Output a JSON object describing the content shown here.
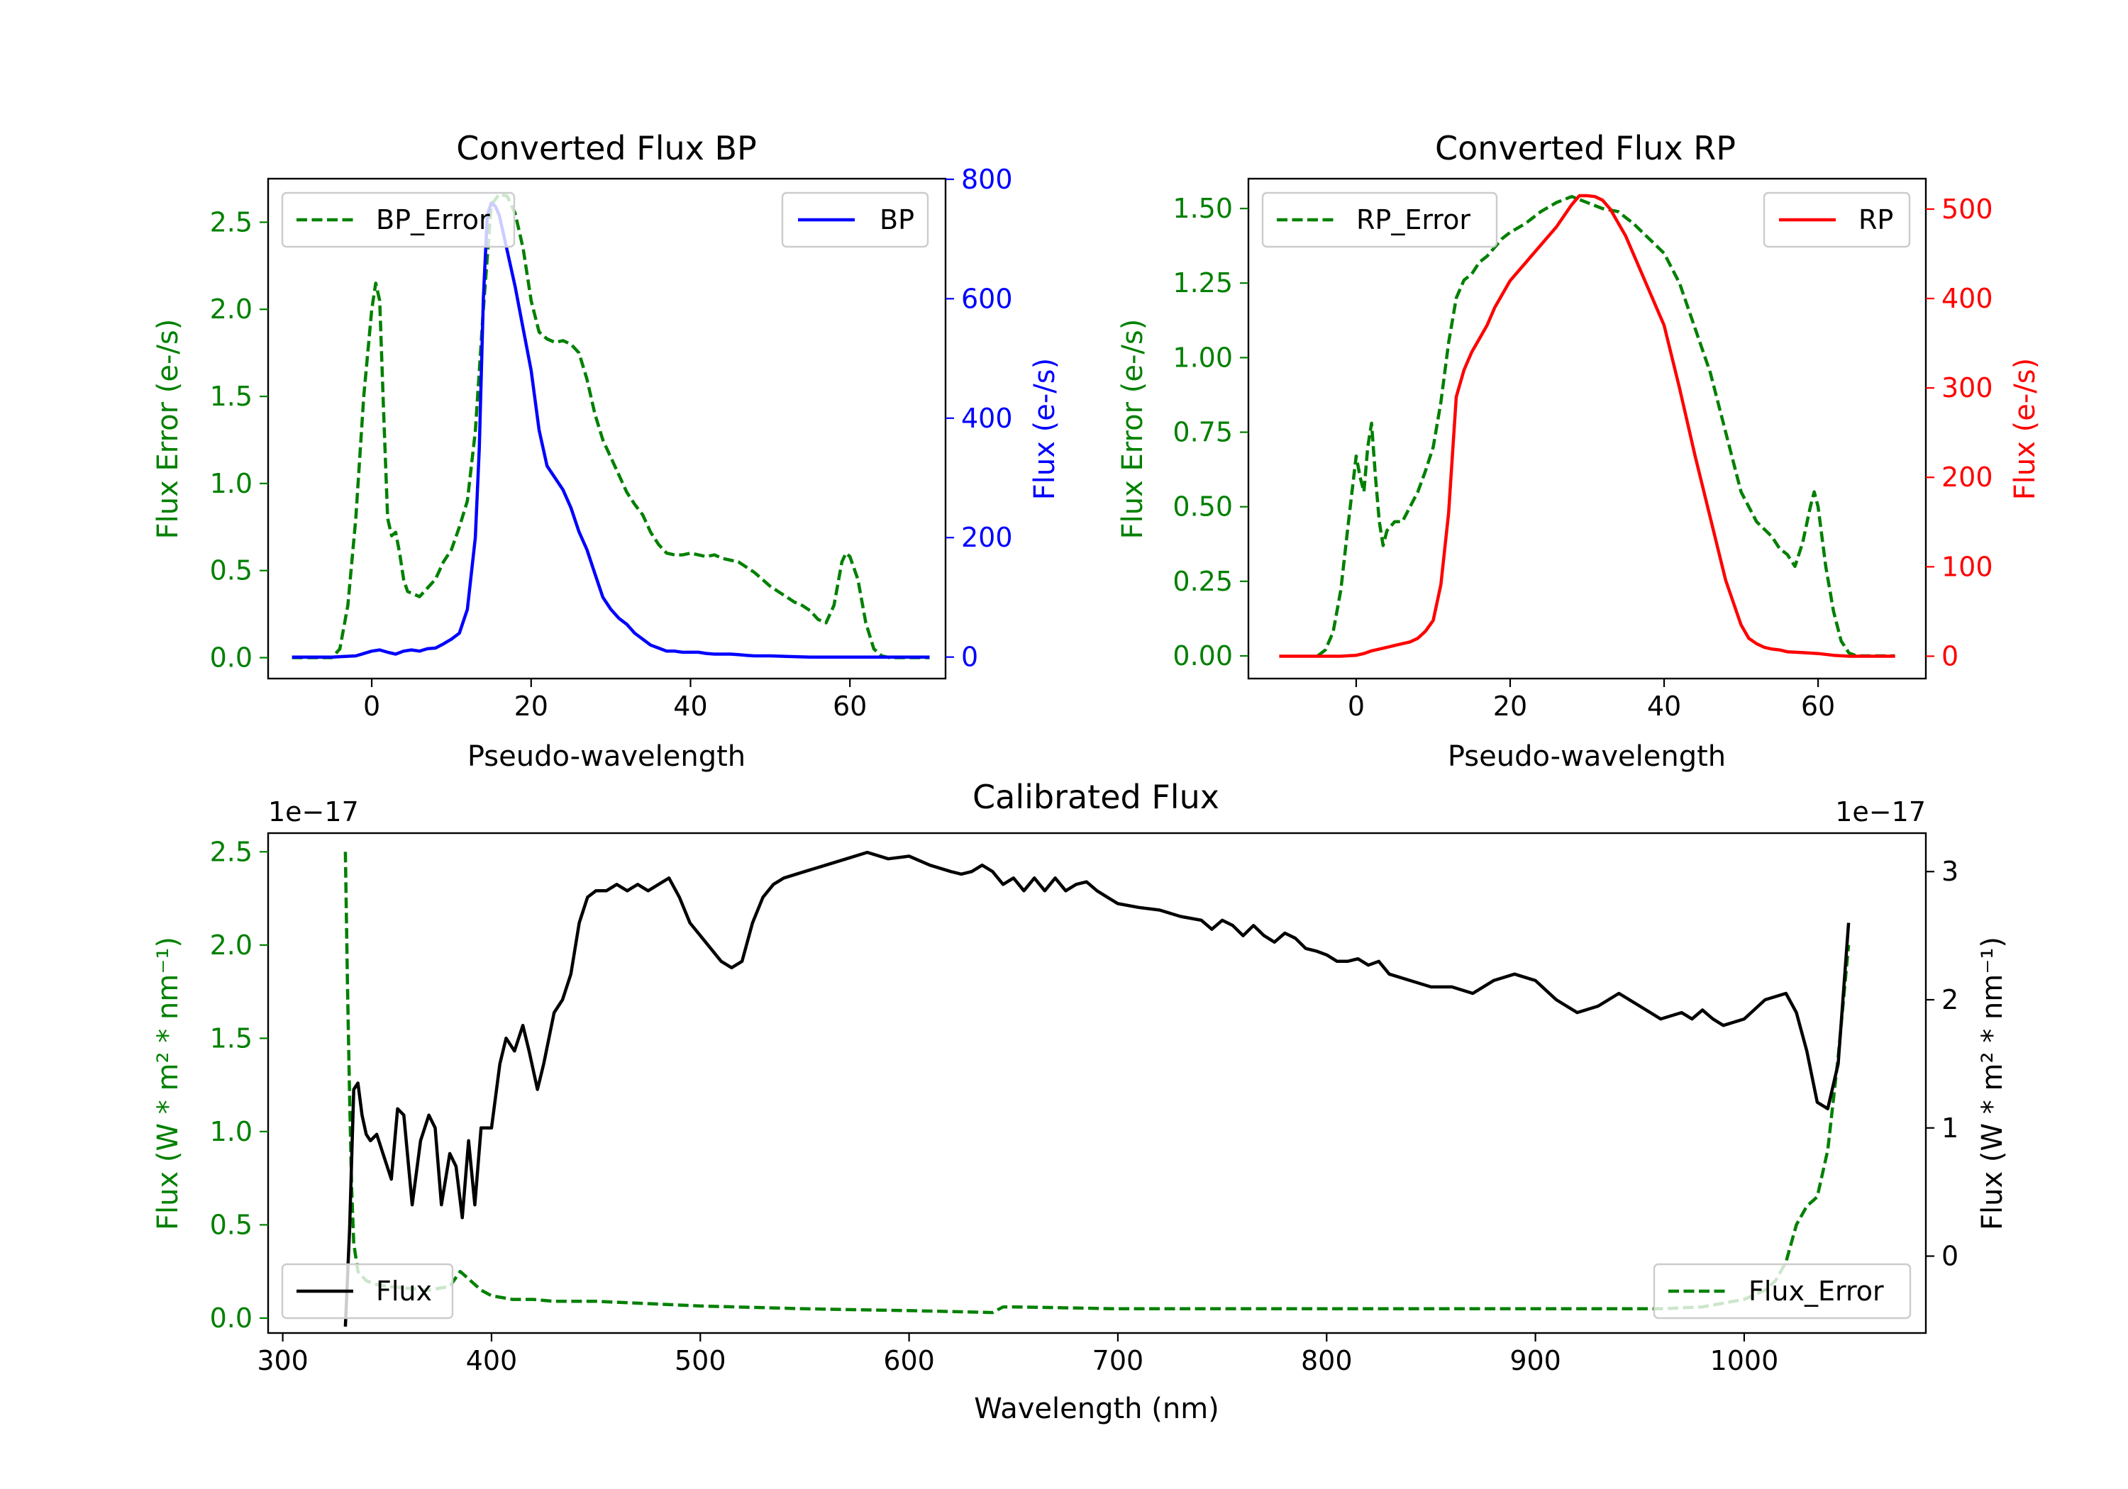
{
  "chart_data": [
    {
      "type": "line",
      "id": "bp",
      "title": "Converted Flux BP",
      "xlabel": "Pseudo-wavelength",
      "ylabel_left": "Flux Error (e-/s)",
      "ylabel_right": "Flux (e-/s)",
      "xlim": [
        -13,
        72
      ],
      "ylim_left": [
        -0.12,
        2.75
      ],
      "ylim_right": [
        -36,
        801
      ],
      "xticks": [
        "0",
        "20",
        "40",
        "60"
      ],
      "yticks_left": [
        "0.0",
        "0.5",
        "1.0",
        "1.5",
        "2.0",
        "2.5"
      ],
      "yticks_right": [
        "0",
        "200",
        "400",
        "600",
        "800"
      ],
      "colors": {
        "left": "#008000",
        "right": "#0000ff"
      },
      "series": [
        {
          "name": "BP_Error",
          "axis": "left",
          "style": "dashed",
          "color": "#008000",
          "x": [
            -10,
            -5,
            -4,
            -3,
            -2,
            -1,
            0,
            0.5,
            1,
            1.5,
            2,
            2.5,
            3,
            3.5,
            4,
            4.5,
            5,
            6,
            7,
            8,
            9,
            10,
            11,
            12,
            13,
            14,
            15,
            16,
            17,
            18,
            19,
            20,
            21,
            22,
            23,
            24,
            25,
            26,
            27,
            28,
            29,
            30,
            31,
            32,
            33,
            34,
            35,
            36,
            37,
            38,
            39,
            40,
            41,
            42,
            43,
            44,
            45,
            46,
            47,
            48,
            49,
            50,
            51,
            52,
            53,
            54,
            55,
            56,
            57,
            58,
            59,
            59.5,
            60,
            61,
            62,
            63,
            64,
            65,
            70
          ],
          "values": [
            0,
            0,
            0.05,
            0.3,
            0.8,
            1.5,
            2.0,
            2.15,
            2.05,
            1.4,
            0.8,
            0.7,
            0.72,
            0.6,
            0.45,
            0.38,
            0.37,
            0.35,
            0.4,
            0.45,
            0.55,
            0.62,
            0.75,
            0.9,
            1.3,
            2.0,
            2.6,
            2.66,
            2.65,
            2.55,
            2.35,
            2.05,
            1.87,
            1.83,
            1.81,
            1.82,
            1.8,
            1.75,
            1.6,
            1.4,
            1.25,
            1.15,
            1.05,
            0.95,
            0.88,
            0.82,
            0.72,
            0.65,
            0.6,
            0.59,
            0.59,
            0.6,
            0.59,
            0.58,
            0.59,
            0.57,
            0.56,
            0.55,
            0.52,
            0.49,
            0.45,
            0.41,
            0.38,
            0.35,
            0.32,
            0.3,
            0.27,
            0.22,
            0.2,
            0.3,
            0.55,
            0.6,
            0.58,
            0.45,
            0.2,
            0.05,
            0.01,
            0,
            0
          ]
        },
        {
          "name": "BP",
          "axis": "right",
          "style": "solid",
          "color": "#0000ff",
          "x": [
            -10,
            -5,
            -2,
            0,
            1,
            2,
            3,
            4,
            5,
            6,
            7,
            8,
            9,
            10,
            11,
            12,
            13,
            13.5,
            14,
            14.5,
            15,
            15.5,
            16,
            17,
            18,
            19,
            20,
            21,
            22,
            23,
            24,
            25,
            26,
            27,
            28,
            29,
            30,
            31,
            32,
            33,
            34,
            35,
            36,
            37,
            38,
            39,
            40,
            41,
            42,
            43,
            44,
            45,
            46,
            47,
            48,
            50,
            52,
            55,
            60,
            65,
            70
          ],
          "values": [
            0,
            0,
            2,
            10,
            12,
            8,
            5,
            10,
            12,
            10,
            14,
            15,
            22,
            30,
            40,
            80,
            200,
            350,
            600,
            740,
            760,
            755,
            740,
            680,
            620,
            550,
            480,
            380,
            320,
            300,
            280,
            250,
            210,
            180,
            140,
            100,
            80,
            65,
            55,
            40,
            30,
            20,
            15,
            10,
            10,
            8,
            8,
            8,
            6,
            5,
            5,
            5,
            4,
            3,
            2,
            2,
            1,
            0,
            0,
            0,
            0
          ]
        }
      ]
    },
    {
      "type": "line",
      "id": "rp",
      "title": "Converted Flux RP",
      "xlabel": "Pseudo-wavelength",
      "ylabel_left": "Flux Error (e-/s)",
      "ylabel_right": "Flux (e-/s)",
      "xlim": [
        -14,
        74
      ],
      "ylim_left": [
        -0.076,
        1.6
      ],
      "ylim_right": [
        -25,
        534
      ],
      "xticks": [
        "0",
        "20",
        "40",
        "60"
      ],
      "yticks_left": [
        "0.00",
        "0.25",
        "0.50",
        "0.75",
        "1.00",
        "1.25",
        "1.50"
      ],
      "yticks_right": [
        "0",
        "100",
        "200",
        "300",
        "400",
        "500"
      ],
      "colors": {
        "left": "#008000",
        "right": "#ff0000"
      },
      "series": [
        {
          "name": "RP_Error",
          "axis": "left",
          "style": "dashed",
          "color": "#008000",
          "x": [
            -5,
            -4,
            -3,
            -2,
            -1,
            0,
            0.5,
            1,
            1.5,
            2,
            2.5,
            3,
            3.5,
            4,
            5,
            6,
            7,
            8,
            9,
            10,
            11,
            12,
            13,
            14,
            15,
            16,
            17,
            18,
            19,
            20,
            22,
            24,
            26,
            28,
            30,
            32,
            34,
            36,
            38,
            40,
            42,
            44,
            46,
            48,
            50,
            52,
            54,
            55,
            56,
            57,
            58,
            59,
            59.5,
            60,
            61,
            62,
            63,
            64,
            65,
            70
          ],
          "values": [
            0,
            0.02,
            0.08,
            0.22,
            0.45,
            0.67,
            0.6,
            0.55,
            0.7,
            0.78,
            0.6,
            0.45,
            0.37,
            0.42,
            0.45,
            0.45,
            0.5,
            0.55,
            0.62,
            0.7,
            0.85,
            1.05,
            1.2,
            1.26,
            1.28,
            1.32,
            1.34,
            1.37,
            1.4,
            1.42,
            1.45,
            1.49,
            1.52,
            1.54,
            1.52,
            1.5,
            1.49,
            1.45,
            1.4,
            1.35,
            1.25,
            1.1,
            0.95,
            0.75,
            0.55,
            0.45,
            0.4,
            0.36,
            0.34,
            0.3,
            0.38,
            0.5,
            0.55,
            0.5,
            0.3,
            0.15,
            0.05,
            0.01,
            0,
            0
          ]
        },
        {
          "name": "RP",
          "axis": "right",
          "style": "solid",
          "color": "#ff0000",
          "x": [
            -10,
            -5,
            -2,
            0,
            1,
            2,
            3,
            4,
            5,
            6,
            7,
            8,
            9,
            10,
            11,
            12,
            13,
            14,
            15,
            16,
            17,
            18,
            19,
            20,
            22,
            24,
            26,
            28,
            29,
            30,
            31,
            32,
            33,
            34,
            35,
            36,
            38,
            40,
            42,
            44,
            46,
            48,
            50,
            51,
            52,
            53,
            54,
            55,
            56,
            58,
            60,
            62,
            64,
            66,
            70
          ],
          "values": [
            0,
            0,
            0,
            1,
            3,
            6,
            8,
            10,
            12,
            14,
            16,
            20,
            28,
            40,
            80,
            160,
            290,
            320,
            340,
            355,
            370,
            390,
            405,
            420,
            440,
            460,
            480,
            505,
            515,
            515,
            514,
            510,
            500,
            485,
            470,
            450,
            410,
            370,
            300,
            225,
            155,
            85,
            35,
            20,
            14,
            10,
            8,
            7,
            5,
            4,
            3,
            1,
            0,
            0,
            0
          ]
        }
      ]
    },
    {
      "type": "line",
      "id": "calibrated",
      "title": "Calibrated Flux",
      "xlabel": "Wavelength (nm)",
      "ylabel_left": "Flux (W * m² * nm⁻¹)",
      "ylabel_right": "Flux (W * m² * nm⁻¹)",
      "offset_left": "1e−17",
      "offset_right": "1e−17",
      "xlim": [
        293,
        1087
      ],
      "ylim_left": [
        -0.08,
        2.6
      ],
      "ylim_right": [
        -0.6,
        3.3
      ],
      "xticks": [
        "300",
        "400",
        "500",
        "600",
        "700",
        "800",
        "900",
        "1000"
      ],
      "yticks_left": [
        "0.0",
        "0.5",
        "1.0",
        "1.5",
        "2.0",
        "2.5"
      ],
      "yticks_right": [
        "0",
        "1",
        "2",
        "3"
      ],
      "colors": {
        "left": "#008000",
        "right": "#000000"
      },
      "series": [
        {
          "name": "Flux_Error",
          "axis": "left",
          "style": "dashed",
          "color": "#008000",
          "x": [
            330,
            331,
            332,
            333,
            334,
            336,
            340,
            345,
            350,
            360,
            370,
            380,
            385,
            390,
            395,
            400,
            410,
            420,
            430,
            440,
            450,
            460,
            470,
            480,
            500,
            550,
            600,
            640,
            645,
            650,
            700,
            800,
            900,
            960,
            980,
            1000,
            1010,
            1015,
            1020,
            1025,
            1030,
            1035,
            1040,
            1045,
            1050
          ],
          "values": [
            2.5,
            1.8,
            1.2,
            0.7,
            0.4,
            0.25,
            0.2,
            0.18,
            0.17,
            0.16,
            0.15,
            0.17,
            0.25,
            0.2,
            0.15,
            0.12,
            0.1,
            0.1,
            0.09,
            0.09,
            0.09,
            0.085,
            0.08,
            0.075,
            0.065,
            0.05,
            0.04,
            0.03,
            0.06,
            0.06,
            0.05,
            0.05,
            0.05,
            0.05,
            0.06,
            0.1,
            0.15,
            0.2,
            0.3,
            0.5,
            0.6,
            0.65,
            0.9,
            1.4,
            2.0
          ]
        },
        {
          "name": "Flux",
          "axis": "right",
          "style": "solid",
          "color": "#000000",
          "x": [
            330,
            332,
            334,
            336,
            338,
            340,
            342,
            345,
            348,
            352,
            355,
            358,
            362,
            366,
            370,
            373,
            376,
            380,
            383,
            386,
            389,
            392,
            395,
            400,
            404,
            407,
            411,
            415,
            418,
            422,
            425,
            430,
            434,
            438,
            442,
            446,
            450,
            455,
            460,
            465,
            470,
            475,
            480,
            485,
            490,
            495,
            500,
            505,
            510,
            515,
            520,
            525,
            530,
            535,
            540,
            550,
            560,
            570,
            580,
            590,
            600,
            610,
            620,
            625,
            630,
            635,
            640,
            645,
            650,
            655,
            660,
            665,
            670,
            675,
            680,
            685,
            690,
            695,
            700,
            710,
            720,
            730,
            740,
            745,
            750,
            755,
            760,
            765,
            770,
            775,
            780,
            785,
            790,
            795,
            800,
            805,
            810,
            815,
            820,
            825,
            830,
            840,
            850,
            860,
            870,
            880,
            890,
            900,
            910,
            920,
            930,
            940,
            950,
            960,
            970,
            975,
            980,
            985,
            990,
            1000,
            1010,
            1020,
            1025,
            1030,
            1035,
            1040,
            1045,
            1050
          ],
          "values": [
            -0.55,
            0.2,
            1.3,
            1.35,
            1.1,
            0.95,
            0.9,
            0.95,
            0.8,
            0.6,
            1.15,
            1.1,
            0.4,
            0.9,
            1.1,
            1.0,
            0.4,
            0.8,
            0.7,
            0.3,
            0.9,
            0.4,
            1.0,
            1.0,
            1.5,
            1.7,
            1.6,
            1.8,
            1.6,
            1.3,
            1.5,
            1.9,
            2.0,
            2.2,
            2.6,
            2.8,
            2.85,
            2.85,
            2.9,
            2.85,
            2.9,
            2.85,
            2.9,
            2.95,
            2.8,
            2.6,
            2.5,
            2.4,
            2.3,
            2.25,
            2.3,
            2.6,
            2.8,
            2.9,
            2.95,
            3.0,
            3.05,
            3.1,
            3.15,
            3.1,
            3.12,
            3.05,
            3.0,
            2.98,
            3.0,
            3.05,
            3.0,
            2.9,
            2.95,
            2.85,
            2.95,
            2.85,
            2.95,
            2.85,
            2.9,
            2.92,
            2.85,
            2.8,
            2.75,
            2.72,
            2.7,
            2.65,
            2.62,
            2.55,
            2.62,
            2.58,
            2.5,
            2.58,
            2.5,
            2.45,
            2.52,
            2.48,
            2.4,
            2.38,
            2.35,
            2.3,
            2.3,
            2.32,
            2.27,
            2.3,
            2.2,
            2.15,
            2.1,
            2.1,
            2.05,
            2.15,
            2.2,
            2.15,
            2.0,
            1.9,
            1.95,
            2.05,
            1.95,
            1.85,
            1.9,
            1.85,
            1.92,
            1.85,
            1.8,
            1.85,
            2.0,
            2.05,
            1.9,
            1.6,
            1.2,
            1.15,
            1.5,
            2.6
          ]
        }
      ]
    }
  ]
}
